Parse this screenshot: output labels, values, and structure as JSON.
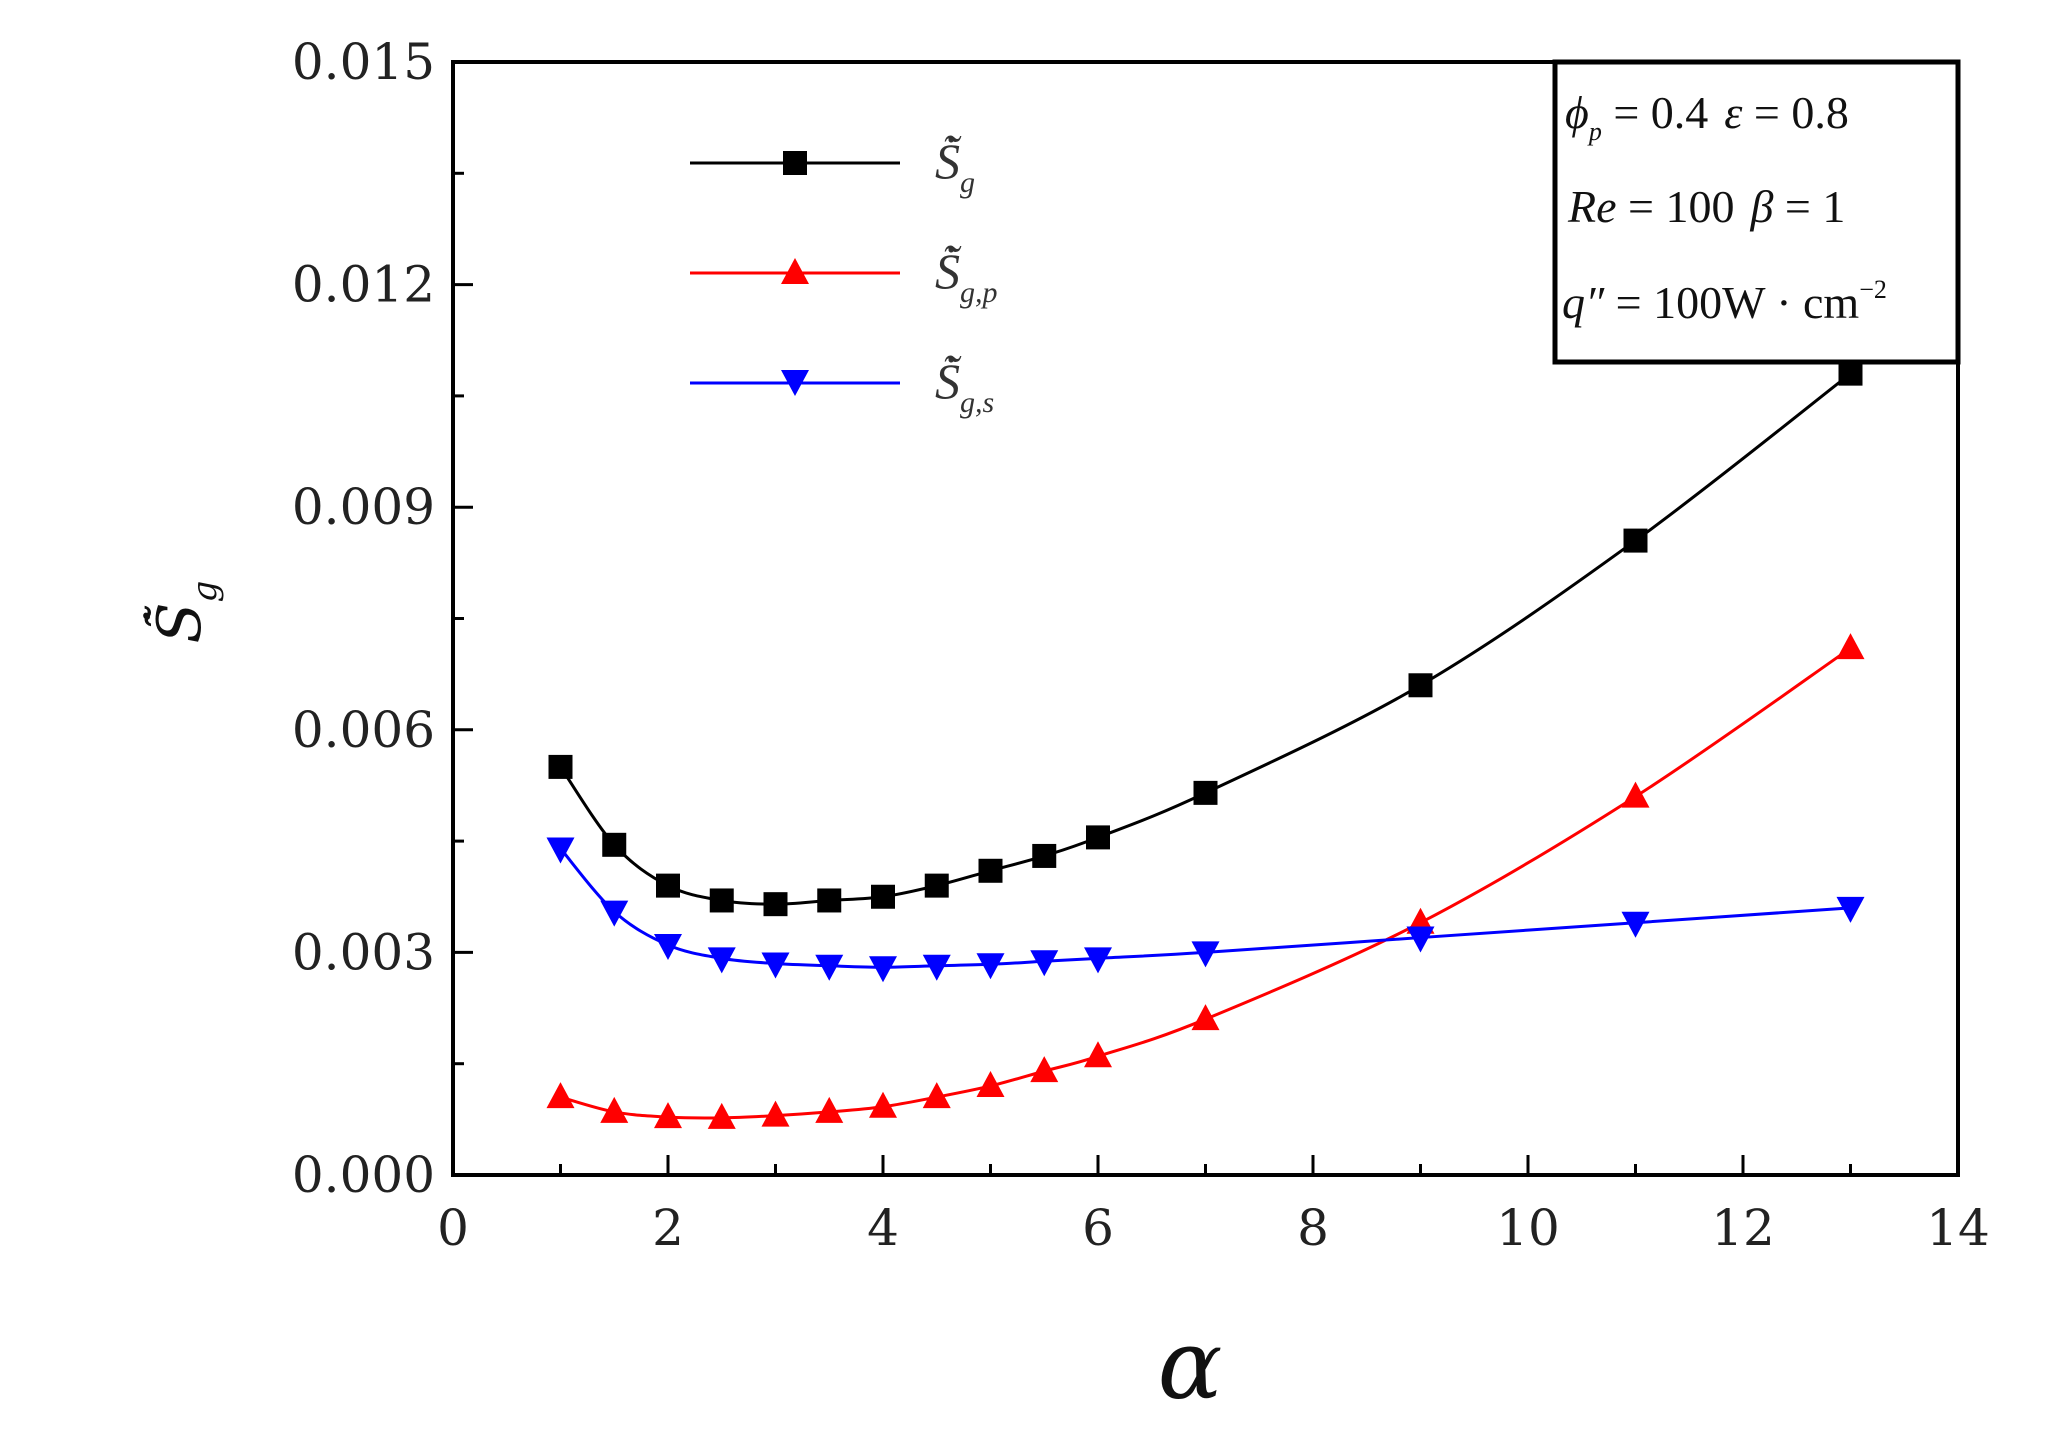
{
  "chart_data": {
    "type": "line",
    "xlabel": "α",
    "ylabel": "S̃̇",
    "ylabel_sub": "g",
    "xlim": [
      0,
      14
    ],
    "ylim": [
      0.0,
      0.015
    ],
    "xticks": [
      0,
      2,
      4,
      6,
      8,
      10,
      12,
      14
    ],
    "xtick_labels": [
      "0",
      "2",
      "4",
      "6",
      "8",
      "10",
      "12",
      "14"
    ],
    "yticks": [
      0.0,
      0.003,
      0.006,
      0.009,
      0.012,
      0.015
    ],
    "ytick_labels": [
      "0.000",
      "0.003",
      "0.006",
      "0.009",
      "0.012",
      "0.015"
    ],
    "grid": false,
    "legend_position": "top-left",
    "x": [
      1,
      1.5,
      2,
      2.5,
      3,
      3.5,
      4,
      4.5,
      5,
      5.5,
      6,
      7,
      9,
      11,
      13
    ],
    "series": [
      {
        "name": "S̃̇",
        "sub": "g",
        "color": "#000000",
        "marker": "square",
        "values": [
          0.0055,
          0.00445,
          0.0039,
          0.0037,
          0.00365,
          0.0037,
          0.00375,
          0.0039,
          0.0041,
          0.0043,
          0.00455,
          0.00515,
          0.0066,
          0.00855,
          0.0108
        ]
      },
      {
        "name": "S̃̇",
        "sub": "g,p",
        "color": "#ff0000",
        "marker": "triangle-up",
        "values": [
          0.00105,
          0.00085,
          0.00078,
          0.00077,
          0.0008,
          0.00085,
          0.00092,
          0.00105,
          0.0012,
          0.0014,
          0.0016,
          0.0021,
          0.0034,
          0.0051,
          0.0071
        ]
      },
      {
        "name": "S̃̇",
        "sub": "g,s",
        "color": "#0000ff",
        "marker": "triangle-down",
        "values": [
          0.0044,
          0.00355,
          0.0031,
          0.00292,
          0.00285,
          0.00282,
          0.0028,
          0.00282,
          0.00284,
          0.00288,
          0.00292,
          0.003,
          0.0032,
          0.0034,
          0.0036
        ]
      }
    ],
    "annotation": {
      "line1_phi": "ϕ",
      "line1_phi_sub": "p",
      "line1_phi_value": " = 0.4",
      "line1_eps": "ε",
      "line1_eps_value": " = 0.8",
      "line2_re": "Re",
      "line2_re_value": " = 100",
      "line2_beta": "β",
      "line2_beta_value": " = 1",
      "line3_q": "q″",
      "line3_q_value": " = 100W · cm",
      "line3_q_exp": "−2"
    }
  }
}
